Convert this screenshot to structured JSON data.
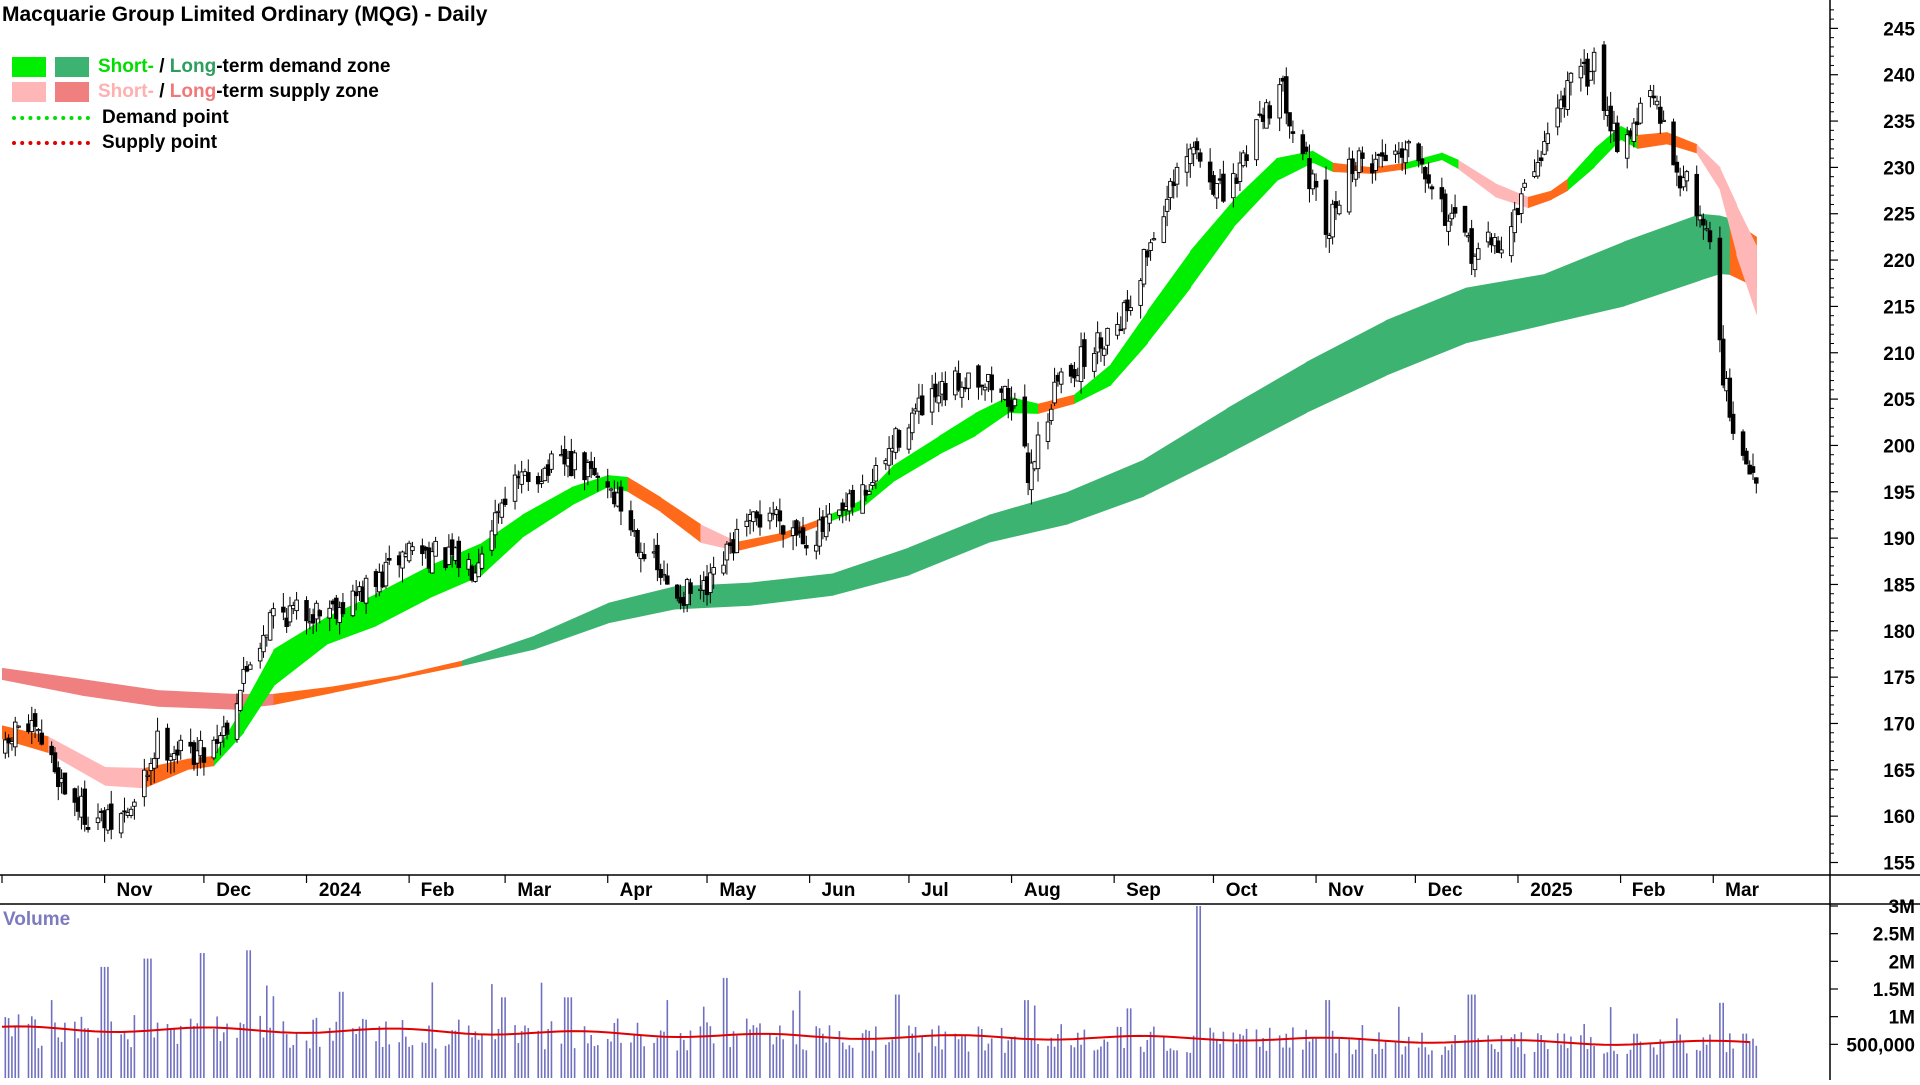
{
  "title": "Macquarie Group Limited Ordinary (MQG) - Daily",
  "legend": {
    "demand_zone": {
      "short": "Short-",
      "separator": " / ",
      "long": "Long",
      "suffix": "-term demand zone"
    },
    "supply_zone": {
      "short": "Short-",
      "separator": " / ",
      "long": "Long",
      "suffix": "-term supply zone"
    },
    "demand_point": "Demand point",
    "supply_point": "Supply point"
  },
  "colors": {
    "short_demand": "#00ee00",
    "long_demand": "#3cb371",
    "short_supply": "#ffb6b6",
    "long_supply": "#f08080",
    "transition": "#ff6a1a",
    "volume_bar": "#7070c0",
    "volume_average": "#e00000",
    "demand_point": "#00dd00",
    "supply_point": "#dd0000",
    "volume_label": "#7b7bc0"
  },
  "chart_data": [
    {
      "type": "candlestick",
      "title": "Macquarie Group Limited Ordinary (MQG) - Daily",
      "ylim": [
        152,
        248
      ],
      "y_ticks": [
        155,
        160,
        165,
        170,
        175,
        180,
        185,
        190,
        195,
        200,
        205,
        210,
        215,
        220,
        225,
        230,
        235,
        240,
        245
      ],
      "x_tick_labels": [
        "Nov",
        "Dec",
        "2024",
        "Feb",
        "Mar",
        "Apr",
        "May",
        "Jun",
        "Jul",
        "Aug",
        "Sep",
        "Oct",
        "Nov",
        "Dec",
        "2025",
        "Feb",
        "Mar"
      ],
      "x_range": [
        "2023-10-01",
        "2025-03-31"
      ],
      "price_path": [
        {
          "date": "2023-10-01",
          "close": 166
        },
        {
          "date": "2023-10-06",
          "close": 170
        },
        {
          "date": "2023-10-13",
          "close": 168
        },
        {
          "date": "2023-10-20",
          "close": 163
        },
        {
          "date": "2023-10-27",
          "close": 160
        },
        {
          "date": "2023-11-03",
          "close": 159
        },
        {
          "date": "2023-11-10",
          "close": 161
        },
        {
          "date": "2023-11-17",
          "close": 168
        },
        {
          "date": "2023-11-24",
          "close": 167
        },
        {
          "date": "2023-12-01",
          "close": 167
        },
        {
          "date": "2023-12-08",
          "close": 170
        },
        {
          "date": "2023-12-15",
          "close": 177
        },
        {
          "date": "2023-12-22",
          "close": 182
        },
        {
          "date": "2024-01-01",
          "close": 182
        },
        {
          "date": "2024-01-12",
          "close": 183
        },
        {
          "date": "2024-01-22",
          "close": 185
        },
        {
          "date": "2024-02-01",
          "close": 189
        },
        {
          "date": "2024-02-10",
          "close": 188
        },
        {
          "date": "2024-02-20",
          "close": 187
        },
        {
          "date": "2024-03-01",
          "close": 195
        },
        {
          "date": "2024-03-10",
          "close": 197
        },
        {
          "date": "2024-03-20",
          "close": 198
        },
        {
          "date": "2024-04-01",
          "close": 196
        },
        {
          "date": "2024-04-10",
          "close": 190
        },
        {
          "date": "2024-04-20",
          "close": 184
        },
        {
          "date": "2024-05-01",
          "close": 184
        },
        {
          "date": "2024-05-10",
          "close": 190
        },
        {
          "date": "2024-05-20",
          "close": 193
        },
        {
          "date": "2024-06-01",
          "close": 190
        },
        {
          "date": "2024-06-10",
          "close": 192
        },
        {
          "date": "2024-06-20",
          "close": 196
        },
        {
          "date": "2024-07-01",
          "close": 203
        },
        {
          "date": "2024-07-10",
          "close": 205
        },
        {
          "date": "2024-07-20",
          "close": 208
        },
        {
          "date": "2024-08-01",
          "close": 205
        },
        {
          "date": "2024-08-06",
          "close": 197
        },
        {
          "date": "2024-08-15",
          "close": 207
        },
        {
          "date": "2024-08-25",
          "close": 210
        },
        {
          "date": "2024-09-05",
          "close": 215
        },
        {
          "date": "2024-09-15",
          "close": 225
        },
        {
          "date": "2024-09-25",
          "close": 232
        },
        {
          "date": "2024-10-05",
          "close": 226
        },
        {
          "date": "2024-10-15",
          "close": 236
        },
        {
          "date": "2024-10-22",
          "close": 238
        },
        {
          "date": "2024-10-28",
          "close": 232
        },
        {
          "date": "2024-11-04",
          "close": 222
        },
        {
          "date": "2024-11-10",
          "close": 230
        },
        {
          "date": "2024-11-20",
          "close": 231
        },
        {
          "date": "2024-12-01",
          "close": 233
        },
        {
          "date": "2024-12-10",
          "close": 225
        },
        {
          "date": "2024-12-18",
          "close": 221
        },
        {
          "date": "2024-12-28",
          "close": 222
        },
        {
          "date": "2025-01-06",
          "close": 230
        },
        {
          "date": "2025-01-15",
          "close": 238
        },
        {
          "date": "2025-01-24",
          "close": 241
        },
        {
          "date": "2025-02-01",
          "close": 232
        },
        {
          "date": "2025-02-10",
          "close": 238
        },
        {
          "date": "2025-02-18",
          "close": 230
        },
        {
          "date": "2025-02-24",
          "close": 226
        },
        {
          "date": "2025-03-01",
          "close": 221
        },
        {
          "date": "2025-03-04",
          "close": 208
        },
        {
          "date": "2025-03-08",
          "close": 199
        },
        {
          "date": "2025-03-12",
          "close": 197
        },
        {
          "date": "2025-03-14",
          "close": 197
        }
      ],
      "short_term_zone": [
        {
          "date": "2023-10-01",
          "lower": 168.3,
          "upper": 169.8,
          "state": "transition"
        },
        {
          "date": "2023-10-15",
          "lower": 166.8,
          "upper": 168.6,
          "state": "supply"
        },
        {
          "date": "2023-11-01",
          "lower": 163.3,
          "upper": 165.3,
          "state": "supply"
        },
        {
          "date": "2023-11-13",
          "lower": 163.0,
          "upper": 165.2,
          "state": "transition"
        },
        {
          "date": "2023-11-26",
          "lower": 165.0,
          "upper": 166.2,
          "state": "transition"
        },
        {
          "date": "2023-12-04",
          "lower": 165.4,
          "upper": 166.5,
          "state": "demand"
        },
        {
          "date": "2023-12-13",
          "lower": 169.0,
          "upper": 172.0,
          "state": "demand"
        },
        {
          "date": "2023-12-22",
          "lower": 174.0,
          "upper": 178.0,
          "state": "demand"
        },
        {
          "date": "2024-01-07",
          "lower": 178.5,
          "upper": 181.5,
          "state": "demand"
        },
        {
          "date": "2024-01-22",
          "lower": 180.5,
          "upper": 184.0,
          "state": "demand"
        },
        {
          "date": "2024-02-07",
          "lower": 183.5,
          "upper": 187.0,
          "state": "demand"
        },
        {
          "date": "2024-02-23",
          "lower": 186.0,
          "upper": 189.5,
          "state": "demand"
        },
        {
          "date": "2024-03-06",
          "lower": 190.0,
          "upper": 192.5,
          "state": "demand"
        },
        {
          "date": "2024-03-21",
          "lower": 193.5,
          "upper": 195.5,
          "state": "demand"
        },
        {
          "date": "2024-04-01",
          "lower": 195.5,
          "upper": 196.8,
          "state": "demand"
        },
        {
          "date": "2024-04-07",
          "lower": 195.0,
          "upper": 196.6,
          "state": "transition"
        },
        {
          "date": "2024-04-17",
          "lower": 192.8,
          "upper": 194.4,
          "state": "transition"
        },
        {
          "date": "2024-04-29",
          "lower": 189.5,
          "upper": 191.5,
          "state": "supply"
        },
        {
          "date": "2024-05-10",
          "lower": 188.6,
          "upper": 189.6,
          "state": "transition"
        },
        {
          "date": "2024-05-24",
          "lower": 189.8,
          "upper": 190.6,
          "state": "transition"
        },
        {
          "date": "2024-06-05",
          "lower": 191.5,
          "upper": 192.2,
          "state": "demand"
        },
        {
          "date": "2024-06-16",
          "lower": 193.0,
          "upper": 194.0,
          "state": "demand"
        },
        {
          "date": "2024-06-26",
          "lower": 196.0,
          "upper": 197.8,
          "state": "demand"
        },
        {
          "date": "2024-07-10",
          "lower": 199.0,
          "upper": 201.0,
          "state": "demand"
        },
        {
          "date": "2024-07-21",
          "lower": 201.0,
          "upper": 203.5,
          "state": "demand"
        },
        {
          "date": "2024-07-31",
          "lower": 203.5,
          "upper": 205.3,
          "state": "demand"
        },
        {
          "date": "2024-08-09",
          "lower": 203.4,
          "upper": 204.5,
          "state": "transition"
        },
        {
          "date": "2024-08-20",
          "lower": 204.5,
          "upper": 205.5,
          "state": "demand"
        },
        {
          "date": "2024-08-31",
          "lower": 206.5,
          "upper": 208.8,
          "state": "demand"
        },
        {
          "date": "2024-09-11",
          "lower": 211.0,
          "upper": 214.5,
          "state": "demand"
        },
        {
          "date": "2024-09-24",
          "lower": 217.0,
          "upper": 221.0,
          "state": "demand"
        },
        {
          "date": "2024-10-07",
          "lower": 223.5,
          "upper": 226.5,
          "state": "demand"
        },
        {
          "date": "2024-10-20",
          "lower": 228.5,
          "upper": 231.0,
          "state": "demand"
        },
        {
          "date": "2024-10-31",
          "lower": 230.5,
          "upper": 231.8,
          "state": "demand"
        },
        {
          "date": "2024-11-06",
          "lower": 229.5,
          "upper": 230.5,
          "state": "transition"
        },
        {
          "date": "2024-11-18",
          "lower": 229.3,
          "upper": 230.0,
          "state": "transition"
        },
        {
          "date": "2024-11-28",
          "lower": 229.8,
          "upper": 230.5,
          "state": "demand"
        },
        {
          "date": "2024-12-09",
          "lower": 230.8,
          "upper": 231.6,
          "state": "demand"
        },
        {
          "date": "2024-12-14",
          "lower": 229.8,
          "upper": 230.8,
          "state": "supply"
        },
        {
          "date": "2024-12-25",
          "lower": 226.8,
          "upper": 228.3,
          "state": "supply"
        },
        {
          "date": "2025-01-04",
          "lower": 225.6,
          "upper": 226.8,
          "state": "transition"
        },
        {
          "date": "2025-01-11",
          "lower": 226.5,
          "upper": 227.5,
          "state": "transition"
        },
        {
          "date": "2025-01-16",
          "lower": 227.5,
          "upper": 228.8,
          "state": "demand"
        },
        {
          "date": "2025-01-24",
          "lower": 230.0,
          "upper": 232.0,
          "state": "demand"
        },
        {
          "date": "2025-02-01",
          "lower": 233.0,
          "upper": 234.5,
          "state": "demand"
        },
        {
          "date": "2025-02-06",
          "lower": 232.0,
          "upper": 233.5,
          "state": "transition"
        },
        {
          "date": "2025-02-15",
          "lower": 232.5,
          "upper": 233.8,
          "state": "transition"
        },
        {
          "date": "2025-02-24",
          "lower": 231.5,
          "upper": 232.5,
          "state": "supply"
        },
        {
          "date": "2025-03-03",
          "lower": 227.5,
          "upper": 230.0,
          "state": "supply"
        },
        {
          "date": "2025-03-08",
          "lower": 220.5,
          "upper": 226.0,
          "state": "supply"
        },
        {
          "date": "2025-03-14",
          "lower": 214.0,
          "upper": 221.5,
          "state": "supply"
        }
      ],
      "long_term_zone": [
        {
          "date": "2023-10-01",
          "lower": 174.7,
          "upper": 176.0,
          "state": "supply"
        },
        {
          "date": "2023-10-25",
          "lower": 173.0,
          "upper": 174.8,
          "state": "supply"
        },
        {
          "date": "2023-11-17",
          "lower": 171.8,
          "upper": 173.6,
          "state": "supply"
        },
        {
          "date": "2023-12-10",
          "lower": 171.5,
          "upper": 173.2,
          "state": "supply"
        },
        {
          "date": "2023-12-22",
          "lower": 172.0,
          "upper": 173.2,
          "state": "transition"
        },
        {
          "date": "2024-01-09",
          "lower": 173.3,
          "upper": 174.0,
          "state": "transition"
        },
        {
          "date": "2024-01-29",
          "lower": 174.8,
          "upper": 175.2,
          "state": "transition"
        },
        {
          "date": "2024-02-17",
          "lower": 176.2,
          "upper": 176.8,
          "state": "demand"
        },
        {
          "date": "2024-03-10",
          "lower": 178.0,
          "upper": 179.5,
          "state": "demand"
        },
        {
          "date": "2024-04-01",
          "lower": 180.8,
          "upper": 183.0,
          "state": "demand"
        },
        {
          "date": "2024-04-21",
          "lower": 182.3,
          "upper": 184.8,
          "state": "demand"
        },
        {
          "date": "2024-05-14",
          "lower": 182.7,
          "upper": 185.2,
          "state": "demand"
        },
        {
          "date": "2024-06-08",
          "lower": 183.8,
          "upper": 186.2,
          "state": "demand"
        },
        {
          "date": "2024-07-01",
          "lower": 186.0,
          "upper": 189.0,
          "state": "demand"
        },
        {
          "date": "2024-07-25",
          "lower": 189.5,
          "upper": 192.5,
          "state": "demand"
        },
        {
          "date": "2024-08-18",
          "lower": 191.5,
          "upper": 195.0,
          "state": "demand"
        },
        {
          "date": "2024-09-10",
          "lower": 194.5,
          "upper": 198.5,
          "state": "demand"
        },
        {
          "date": "2024-10-05",
          "lower": 199.0,
          "upper": 204.0,
          "state": "demand"
        },
        {
          "date": "2024-10-29",
          "lower": 203.5,
          "upper": 209.0,
          "state": "demand"
        },
        {
          "date": "2024-11-22",
          "lower": 207.5,
          "upper": 213.5,
          "state": "demand"
        },
        {
          "date": "2024-12-16",
          "lower": 211.0,
          "upper": 217.0,
          "state": "demand"
        },
        {
          "date": "2025-01-09",
          "lower": 213.0,
          "upper": 218.5,
          "state": "demand"
        },
        {
          "date": "2025-02-02",
          "lower": 215.0,
          "upper": 222.0,
          "state": "demand"
        },
        {
          "date": "2025-02-25",
          "lower": 217.8,
          "upper": 225.0,
          "state": "demand"
        },
        {
          "date": "2025-03-03",
          "lower": 218.5,
          "upper": 224.8,
          "state": "demand"
        },
        {
          "date": "2025-03-06",
          "lower": 218.4,
          "upper": 224.5,
          "state": "transition"
        },
        {
          "date": "2025-03-14",
          "lower": 217.0,
          "upper": 222.5,
          "state": "transition"
        }
      ]
    },
    {
      "type": "bar",
      "title": "Volume",
      "ylim": [
        0,
        3100000
      ],
      "y_ticks": [
        500000,
        1000000,
        1500000,
        2000000,
        2500000,
        3000000
      ],
      "y_tick_labels": [
        "500,000",
        "1M",
        "1.5M",
        "2M",
        "2.5M",
        "3M"
      ],
      "typical_volume": [
        {
          "date": "2023-10-01",
          "value": 780000
        },
        {
          "date": "2024-02-01",
          "value": 740000
        },
        {
          "date": "2024-06-01",
          "value": 640000
        },
        {
          "date": "2024-10-01",
          "value": 610000
        },
        {
          "date": "2025-02-01",
          "value": 520000
        },
        {
          "date": "2025-03-14",
          "value": 540000
        }
      ],
      "spikes": [
        {
          "date": "2023-10-15",
          "value": 1300000
        },
        {
          "date": "2023-11-01",
          "value": 1900000
        },
        {
          "date": "2023-11-14",
          "value": 2050000
        },
        {
          "date": "2023-12-01",
          "value": 2150000
        },
        {
          "date": "2023-12-15",
          "value": 2200000
        },
        {
          "date": "2024-01-12",
          "value": 1450000
        },
        {
          "date": "2024-03-01",
          "value": 1350000
        },
        {
          "date": "2024-03-20",
          "value": 1350000
        },
        {
          "date": "2024-04-20",
          "value": 1300000
        },
        {
          "date": "2024-05-06",
          "value": 1700000
        },
        {
          "date": "2024-06-28",
          "value": 1400000
        },
        {
          "date": "2024-08-05",
          "value": 1300000
        },
        {
          "date": "2024-09-06",
          "value": 1150000
        },
        {
          "date": "2024-09-27",
          "value": 3000000
        },
        {
          "date": "2024-11-04",
          "value": 1300000
        },
        {
          "date": "2024-12-18",
          "value": 1400000
        },
        {
          "date": "2025-03-03",
          "value": 1250000
        }
      ],
      "average_line_name": "Volume average"
    }
  ]
}
